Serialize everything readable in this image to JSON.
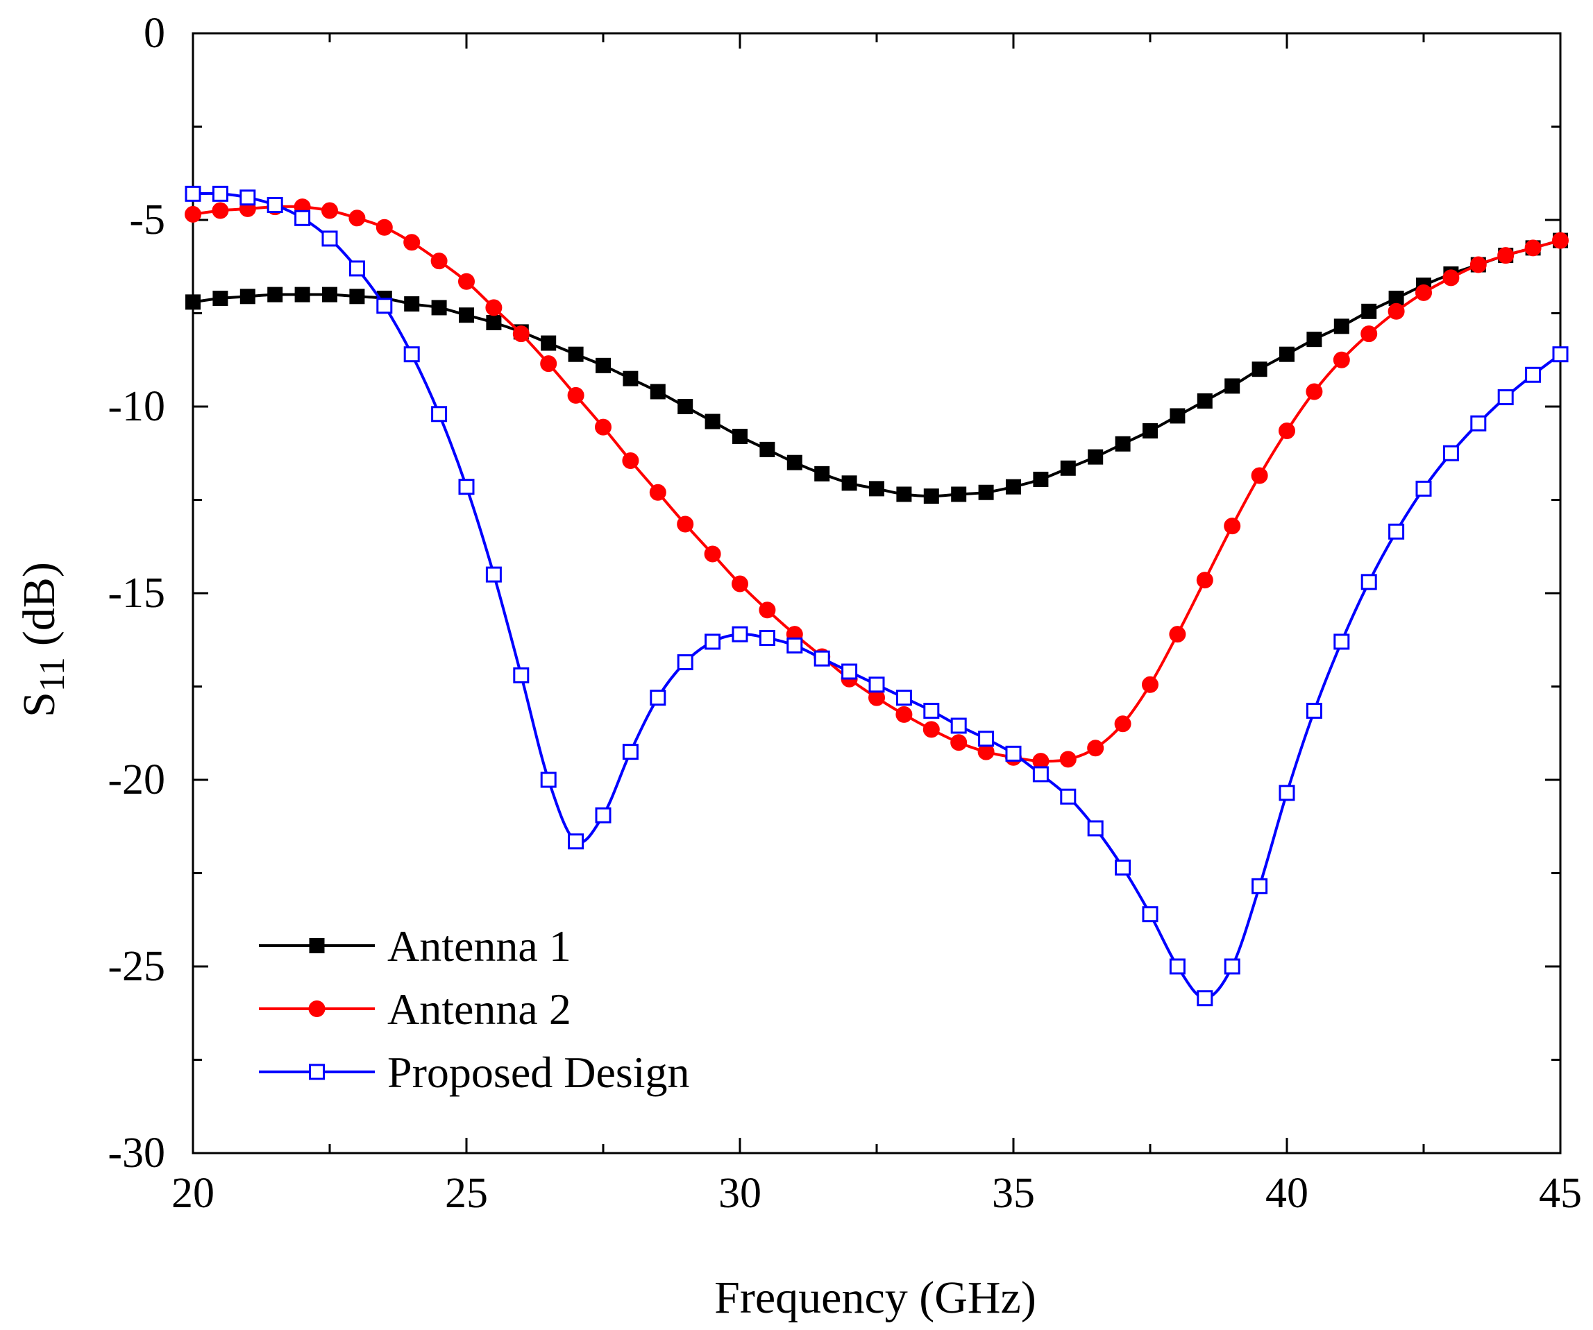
{
  "chart_data": {
    "type": "line",
    "title": "",
    "xlabel": "Frequency (GHz)",
    "ylabel_main": "S",
    "ylabel_sub": "11",
    "ylabel_unit": "(dB)",
    "xlim": [
      20,
      45
    ],
    "ylim": [
      -30,
      0
    ],
    "xticks": [
      20,
      25,
      30,
      35,
      40,
      45
    ],
    "yticks": [
      0,
      -5,
      -10,
      -15,
      -20,
      -25,
      -30
    ],
    "xtick_labels": [
      "20",
      "25",
      "30",
      "35",
      "40",
      "45"
    ],
    "ytick_labels": [
      "0",
      "-5",
      "-10",
      "-15",
      "-20",
      "-25",
      "-30"
    ],
    "grid": false,
    "legend_position": "bottom-left",
    "x": [
      20,
      20.5,
      21,
      21.5,
      22,
      22.5,
      23,
      23.5,
      24,
      24.5,
      25,
      25.5,
      26,
      26.5,
      27,
      27.5,
      28,
      28.5,
      29,
      29.5,
      30,
      30.5,
      31,
      31.5,
      32,
      32.5,
      33,
      33.5,
      34,
      34.5,
      35,
      35.5,
      36,
      36.5,
      37,
      37.5,
      38,
      38.5,
      39,
      39.5,
      40,
      40.5,
      41,
      41.5,
      42,
      42.5,
      43,
      43.5,
      44,
      44.5,
      45
    ],
    "series": [
      {
        "name": "Antenna 1",
        "color": "#000000",
        "marker": "filled-square",
        "values": [
          -7.2,
          -7.1,
          -7.05,
          -7.0,
          -7.0,
          -7.0,
          -7.05,
          -7.1,
          -7.25,
          -7.35,
          -7.55,
          -7.75,
          -8.0,
          -8.3,
          -8.6,
          -8.9,
          -9.25,
          -9.6,
          -10.0,
          -10.4,
          -10.8,
          -11.15,
          -11.5,
          -11.8,
          -12.05,
          -12.2,
          -12.35,
          -12.4,
          -12.35,
          -12.3,
          -12.15,
          -11.95,
          -11.65,
          -11.35,
          -11.0,
          -10.65,
          -10.25,
          -9.85,
          -9.45,
          -9.0,
          -8.6,
          -8.2,
          -7.85,
          -7.45,
          -7.1,
          -6.75,
          -6.45,
          -6.2,
          -5.95,
          -5.75,
          -5.55
        ]
      },
      {
        "name": "Antenna 2",
        "color": "#ff0000",
        "marker": "filled-circle",
        "values": [
          -4.85,
          -4.75,
          -4.7,
          -4.65,
          -4.65,
          -4.75,
          -4.95,
          -5.2,
          -5.6,
          -6.1,
          -6.65,
          -7.35,
          -8.05,
          -8.85,
          -9.7,
          -10.55,
          -11.45,
          -12.3,
          -13.15,
          -13.95,
          -14.75,
          -15.45,
          -16.1,
          -16.7,
          -17.3,
          -17.8,
          -18.25,
          -18.65,
          -19.0,
          -19.25,
          -19.4,
          -19.5,
          -19.45,
          -19.15,
          -18.5,
          -17.45,
          -16.1,
          -14.65,
          -13.2,
          -11.85,
          -10.65,
          -9.6,
          -8.75,
          -8.05,
          -7.45,
          -6.95,
          -6.55,
          -6.2,
          -5.95,
          -5.75,
          -5.55
        ]
      },
      {
        "name": "Proposed Design",
        "color": "#0000ff",
        "marker": "hollow-square",
        "values": [
          -4.3,
          -4.3,
          -4.4,
          -4.6,
          -4.95,
          -5.5,
          -6.3,
          -7.3,
          -8.6,
          -10.2,
          -12.15,
          -14.5,
          -17.2,
          -20.0,
          -21.65,
          -20.95,
          -19.25,
          -17.8,
          -16.85,
          -16.3,
          -16.1,
          -16.2,
          -16.4,
          -16.75,
          -17.1,
          -17.45,
          -17.8,
          -18.15,
          -18.55,
          -18.9,
          -19.3,
          -19.85,
          -20.45,
          -21.3,
          -22.35,
          -23.6,
          -25.0,
          -25.85,
          -25.0,
          -22.85,
          -20.35,
          -18.15,
          -16.3,
          -14.7,
          -13.35,
          -12.2,
          -11.25,
          -10.45,
          -9.75,
          -9.15,
          -8.6
        ]
      }
    ]
  }
}
